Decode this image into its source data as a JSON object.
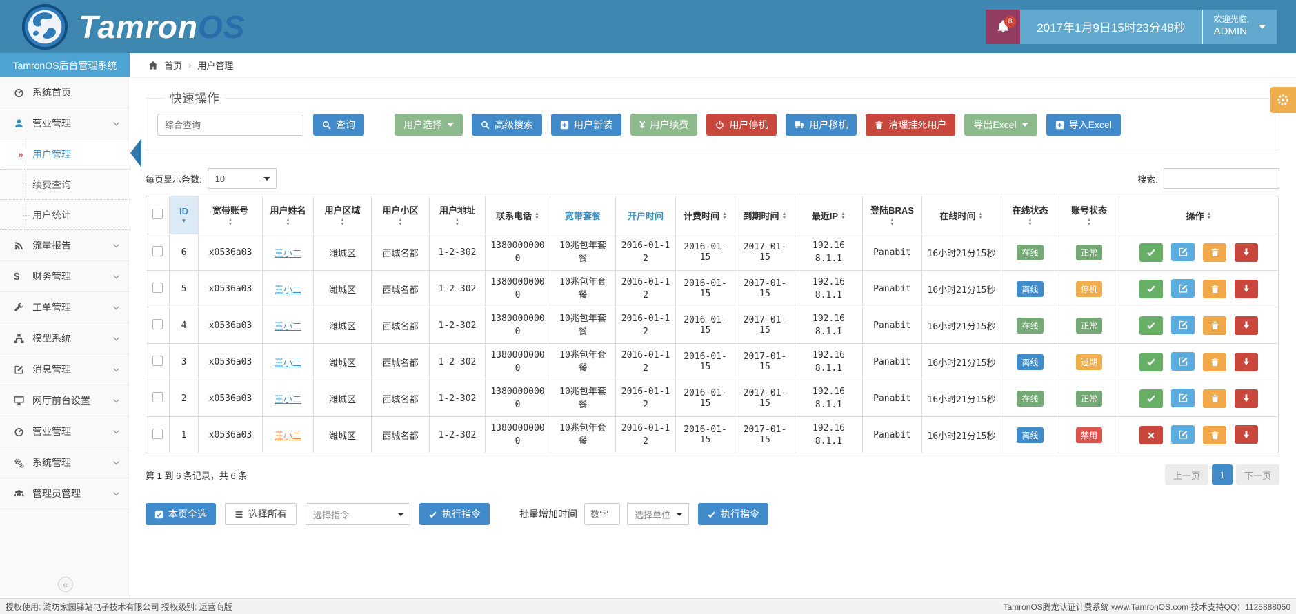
{
  "colors": {
    "topbar": "#3e87b0",
    "sidebar_title": "#4da4d2",
    "notif_bg": "#913c60",
    "datetime_bg": "#61a8ce",
    "primary_blue": "#428bca",
    "muted_green": "#8cba8c",
    "danger_red": "#c9473d",
    "warning_orange": "#f0ad4e",
    "badge_green": "#74a874",
    "badge_blue": "#428bca",
    "badge_red": "#d9534f",
    "active_arrow": "#3178ad",
    "gear_float": "#f0ad4e"
  },
  "header": {
    "logo_part1": "Tamron",
    "logo_part2": "OS",
    "notification_count": "8",
    "bell_icon": "bell-icon",
    "datetime": "2017年1月9日15时23分48秒",
    "welcome_line1": "欢迎光临,",
    "welcome_line2": "ADMIN"
  },
  "sidebar": {
    "title": "TamronOS后台管理系统",
    "collapse_glyph": "«",
    "items": [
      {
        "label": "系统首页",
        "icon": "tachometer-icon",
        "chevron": false
      },
      {
        "label": "营业管理",
        "icon": "user-icon",
        "chevron": true,
        "open": true,
        "submenu": [
          {
            "label": "用户管理",
            "active": true
          },
          {
            "label": "续费查询",
            "active": false
          },
          {
            "label": "用户统计",
            "active": false
          }
        ]
      },
      {
        "label": "流量报告",
        "icon": "rss-icon",
        "chevron": true
      },
      {
        "label": "财务管理",
        "icon": "dollar-icon",
        "chevron": true
      },
      {
        "label": "工单管理",
        "icon": "wrench-icon",
        "chevron": true
      },
      {
        "label": "模型系统",
        "icon": "sitemap-icon",
        "chevron": true
      },
      {
        "label": "消息管理",
        "icon": "edit-icon",
        "chevron": true
      },
      {
        "label": "网厅前台设置",
        "icon": "desktop-icon",
        "chevron": true
      },
      {
        "label": "营业管理",
        "icon": "tachometer-icon",
        "chevron": true
      },
      {
        "label": "系统管理",
        "icon": "gears-icon",
        "chevron": true
      },
      {
        "label": "管理员管理",
        "icon": "users-icon",
        "chevron": true
      }
    ]
  },
  "breadcrumb": {
    "home": "首页",
    "separator": "›",
    "current": "用户管理"
  },
  "quick_ops": {
    "legend": "快速操作",
    "search_placeholder": "综合查询",
    "buttons": [
      {
        "label": "查询",
        "color": "blue",
        "icon": "search-icon",
        "caret": false,
        "gap_after": true
      },
      {
        "label": "用户选择",
        "color": "green",
        "icon": null,
        "caret": true
      },
      {
        "label": "高级搜索",
        "color": "blue",
        "icon": "search-icon",
        "caret": false
      },
      {
        "label": "用户新装",
        "color": "blue",
        "icon": "plus-square-icon",
        "caret": false
      },
      {
        "label": "用户续费",
        "color": "green",
        "icon": "yen-icon",
        "caret": false
      },
      {
        "label": "用户停机",
        "color": "red",
        "icon": "power-icon",
        "caret": false
      },
      {
        "label": "用户移机",
        "color": "blue",
        "icon": "truck-icon",
        "caret": false
      },
      {
        "label": "清理挂死用户",
        "color": "red",
        "icon": "trash-icon",
        "caret": false
      },
      {
        "label": "导出Excel",
        "color": "green",
        "icon": null,
        "caret": true
      },
      {
        "label": "导入Excel",
        "color": "blue",
        "icon": "plus-square-icon",
        "caret": false
      }
    ]
  },
  "table_controls": {
    "page_size_label": "每页显示条数:",
    "page_size_value": "10",
    "search_label": "搜索:"
  },
  "table": {
    "columns": [
      {
        "label": "",
        "type": "checkbox"
      },
      {
        "label": "ID",
        "caret": "sorted"
      },
      {
        "label": "宽带账号",
        "caret": "stack"
      },
      {
        "label": "用户姓名",
        "caret": "stack"
      },
      {
        "label": "用户区域",
        "caret": "stack"
      },
      {
        "label": "用户小区",
        "caret": "stack"
      },
      {
        "label": "用户地址",
        "caret": "stack"
      },
      {
        "label": "联系电话",
        "caret": "inline"
      },
      {
        "label": "宽带套餐",
        "caret": "none",
        "link": true
      },
      {
        "label": "开户时间",
        "caret": "none",
        "link": true
      },
      {
        "label": "计费时间",
        "caret": "inline"
      },
      {
        "label": "到期时间",
        "caret": "inline"
      },
      {
        "label": "最近IP",
        "caret": "inline"
      },
      {
        "label": "登陆BRAS",
        "caret": "stack"
      },
      {
        "label": "在线时间",
        "caret": "inline"
      },
      {
        "label": "在线状态",
        "caret": "stack"
      },
      {
        "label": "账号状态",
        "caret": "stack"
      },
      {
        "label": "操作",
        "caret": "inline"
      }
    ],
    "rows": [
      {
        "id": "6",
        "account": "x0536a03",
        "name": "王小二",
        "name_style": "link",
        "region": "潍城区",
        "community": "西城名都",
        "address": "1-2-302",
        "phone": "13800000000",
        "plan": "10兆包年套餐",
        "open_date": "2016-01-12",
        "billing_date": "2016-01-15",
        "expire_date": "2017-01-15",
        "ip": "192.168.1.1",
        "bras": "Panabit",
        "online_time": "16小时21分15秒",
        "online_status": "在线",
        "online_status_color": "green",
        "account_status": "正常",
        "account_status_color": "green",
        "actions": [
          "check",
          "edit",
          "trash",
          "download"
        ]
      },
      {
        "id": "5",
        "account": "x0536a03",
        "name": "王小二",
        "name_style": "link",
        "region": "潍城区",
        "community": "西城名都",
        "address": "1-2-302",
        "phone": "13800000000",
        "plan": "10兆包年套餐",
        "open_date": "2016-01-12",
        "billing_date": "2016-01-15",
        "expire_date": "2017-01-15",
        "ip": "192.168.1.1",
        "bras": "Panabit",
        "online_time": "16小时21分15秒",
        "online_status": "离线",
        "online_status_color": "blue",
        "account_status": "停机",
        "account_status_color": "orange",
        "actions": [
          "check",
          "edit",
          "trash",
          "download"
        ]
      },
      {
        "id": "4",
        "account": "x0536a03",
        "name": "王小二",
        "name_style": "link",
        "region": "潍城区",
        "community": "西城名都",
        "address": "1-2-302",
        "phone": "13800000000",
        "plan": "10兆包年套餐",
        "open_date": "2016-01-12",
        "billing_date": "2016-01-15",
        "expire_date": "2017-01-15",
        "ip": "192.168.1.1",
        "bras": "Panabit",
        "online_time": "16小时21分15秒",
        "online_status": "在线",
        "online_status_color": "green",
        "account_status": "正常",
        "account_status_color": "green",
        "actions": [
          "check",
          "edit",
          "trash",
          "download"
        ]
      },
      {
        "id": "3",
        "account": "x0536a03",
        "name": "王小二",
        "name_style": "link",
        "region": "潍城区",
        "community": "西城名都",
        "address": "1-2-302",
        "phone": "13800000000",
        "plan": "10兆包年套餐",
        "open_date": "2016-01-12",
        "billing_date": "2016-01-15",
        "expire_date": "2017-01-15",
        "ip": "192.168.1.1",
        "bras": "Panabit",
        "online_time": "16小时21分15秒",
        "online_status": "离线",
        "online_status_color": "blue",
        "account_status": "过期",
        "account_status_color": "orange",
        "actions": [
          "check",
          "edit",
          "trash",
          "download"
        ]
      },
      {
        "id": "2",
        "account": "x0536a03",
        "name": "王小二",
        "name_style": "link",
        "region": "潍城区",
        "community": "西城名都",
        "address": "1-2-302",
        "phone": "13800000000",
        "plan": "10兆包年套餐",
        "open_date": "2016-01-12",
        "billing_date": "2016-01-15",
        "expire_date": "2017-01-15",
        "ip": "192.168.1.1",
        "bras": "Panabit",
        "online_time": "16小时21分15秒",
        "online_status": "在线",
        "online_status_color": "green",
        "account_status": "正常",
        "account_status_color": "green",
        "actions": [
          "check",
          "edit",
          "trash",
          "download"
        ]
      },
      {
        "id": "1",
        "account": "x0536a03",
        "name": "王小二",
        "name_style": "disabled",
        "region": "潍城区",
        "community": "西城名都",
        "address": "1-2-302",
        "phone": "13800000000",
        "plan": "10兆包年套餐",
        "open_date": "2016-01-12",
        "billing_date": "2016-01-15",
        "expire_date": "2017-01-15",
        "ip": "192.168.1.1",
        "bras": "Panabit",
        "online_time": "16小时21分15秒",
        "online_status": "离线",
        "online_status_color": "blue",
        "account_status": "禁用",
        "account_status_color": "red",
        "actions": [
          "x",
          "edit",
          "trash",
          "download"
        ]
      }
    ]
  },
  "pagination": {
    "summary": "第 1 到 6 条记录，共 6 条",
    "prev": "上一页",
    "page": "1",
    "next": "下一页"
  },
  "batch_bar": {
    "select_page_label": "本页全选",
    "select_all_label": "选择所有",
    "cmd_placeholder": "选择指令",
    "execute_label": "执行指令",
    "batch_time_label": "批量增加时间",
    "number_placeholder": "数字",
    "unit_placeholder": "选择单位",
    "execute2_label": "执行指令"
  },
  "footer": {
    "left": "授权使用: 潍坊家园驿站电子技术有限公司  授权级别: 运营商版",
    "right": "TamronOS腾龙认证计费系统 www.TamronOS.com 技术支持QQ：1125888050"
  }
}
